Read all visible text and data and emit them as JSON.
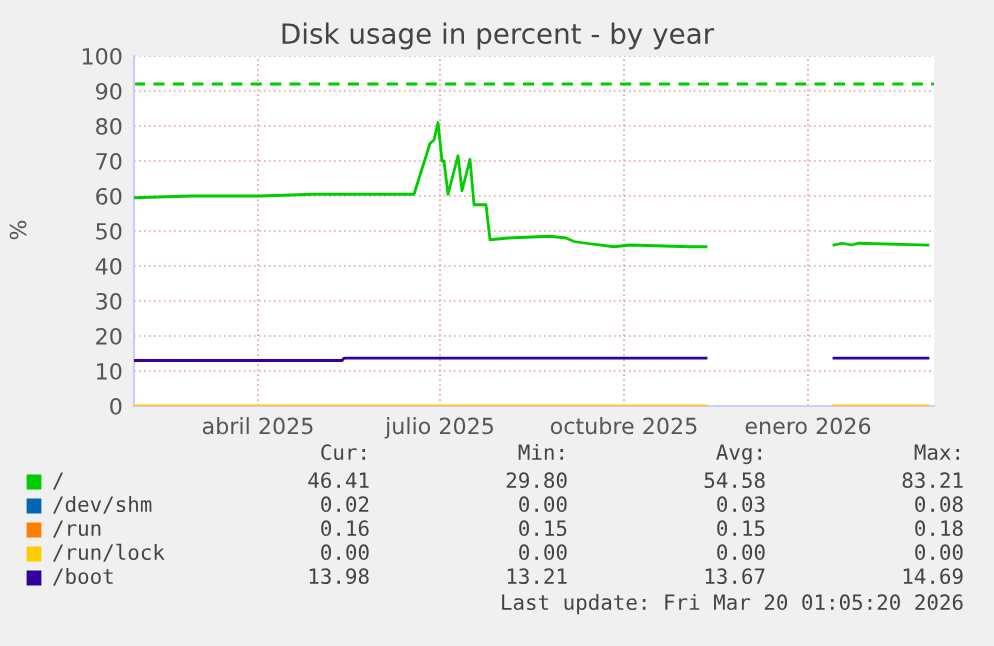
{
  "chart_data": {
    "type": "line",
    "title": "Disk usage in percent - by year",
    "ylabel": "%",
    "ylim": [
      0,
      100
    ],
    "yticks": [
      0,
      10,
      20,
      30,
      40,
      50,
      60,
      70,
      80,
      90,
      100
    ],
    "xlim": [
      "2025-02-13",
      "2026-03-20"
    ],
    "xticks": [
      {
        "value": "2025-04-16",
        "label": "abril 2025"
      },
      {
        "value": "2025-07-16",
        "label": "julio 2025"
      },
      {
        "value": "2025-10-16",
        "label": "octubre 2025"
      },
      {
        "value": "2026-01-16",
        "label": "enero 2026"
      }
    ],
    "grid": true,
    "legend": "bottom",
    "line_style": "solid",
    "series": [
      {
        "name": "/",
        "color": "#00cc00",
        "x": [
          "2025-02-13",
          "2025-03-14",
          "2025-04-17",
          "2025-05-14",
          "2025-07-03",
          "2025-07-11",
          "2025-07-13",
          "2025-07-15",
          "2025-07-17",
          "2025-07-18",
          "2025-07-20",
          "2025-07-25",
          "2025-07-27",
          "2025-07-31",
          "2025-08-02",
          "2025-08-08",
          "2025-08-10",
          "2025-08-19",
          "2025-09-09",
          "2025-09-17",
          "2025-09-21",
          "2025-09-27",
          "2025-10-11",
          "2025-10-19",
          "2025-11-18",
          "2025-11-26",
          "2025-12-20",
          "2026-01-29",
          "2026-02-02",
          "2026-02-07",
          "2026-02-10",
          "2026-03-17"
        ],
        "values": [
          59.5,
          60,
          60,
          60.5,
          60.5,
          75,
          76,
          81,
          70,
          70,
          60.5,
          71.5,
          61.5,
          70.5,
          57.5,
          57.5,
          47.5,
          48,
          48.5,
          48,
          47,
          46.5,
          45.5,
          46,
          45.5,
          45.5,
          null,
          46,
          46.5,
          46,
          46.5,
          46
        ]
      },
      {
        "name": "/dev/shm",
        "color": "#0066b3"
      },
      {
        "name": "/run",
        "color": "#ff8000"
      },
      {
        "name": "/run/lock",
        "color": "#ffcc00",
        "x": [
          "2025-02-13",
          "2025-11-26",
          "2025-12-20",
          "2026-01-29",
          "2026-03-17"
        ],
        "values": [
          0,
          0,
          null,
          0,
          0
        ]
      },
      {
        "name": "/boot",
        "color": "#330099",
        "x": [
          "2025-02-13",
          "2025-05-28",
          "2025-05-29",
          "2025-11-26",
          "2025-12-20",
          "2026-01-29",
          "2026-03-17"
        ],
        "values": [
          13,
          13,
          13.7,
          13.7,
          null,
          13.7,
          13.7
        ]
      }
    ],
    "ref_lines": [
      {
        "axis": "y",
        "value": 92,
        "color": "#00cc00",
        "line_style": "dashed"
      }
    ],
    "annotations": [
      "Cur:",
      "Min:",
      "Avg:",
      "Max:",
      "46.41",
      "29.80",
      "54.58",
      "83.21",
      "0.02",
      "0.00",
      "0.03",
      "0.08",
      "0.16",
      "0.15",
      "0.15",
      "0.18",
      "0.00",
      "0.00",
      "0.00",
      "0.00",
      "13.98",
      "13.21",
      "13.67",
      "14.69",
      "Last update: Fri Mar 20 01:05:20 2026"
    ]
  }
}
